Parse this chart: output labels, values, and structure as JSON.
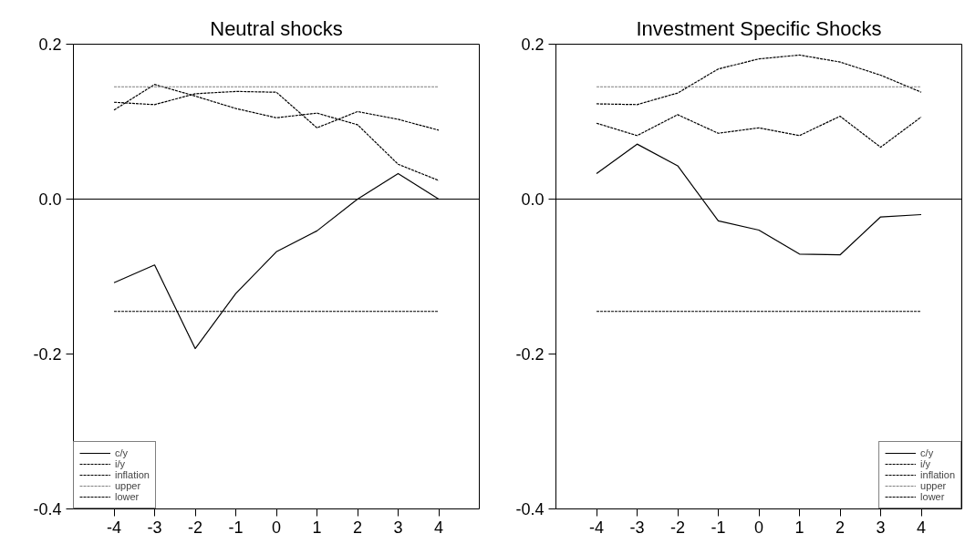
{
  "chart_data": [
    {
      "type": "line",
      "title": "Neutral shocks",
      "x": [
        -4,
        -3,
        -2,
        -1,
        0,
        1,
        2,
        3,
        4
      ],
      "xlim": [
        -5,
        5
      ],
      "xticks": [
        -4,
        -3,
        -2,
        -1,
        0,
        1,
        2,
        3,
        4
      ],
      "ylim": [
        -0.4,
        0.2
      ],
      "yticks": [
        {
          "value": -0.4,
          "label": "-0.4"
        },
        {
          "value": -0.2,
          "label": "-0.2"
        },
        {
          "value": 0,
          "label": "0.0"
        },
        {
          "value": 0.2,
          "label": "0.2"
        }
      ],
      "grid": false,
      "legend": "bottom left",
      "ref_lines": [
        {
          "axis": "y",
          "value": 0,
          "color": "#000000"
        }
      ],
      "series": [
        {
          "name": "c/y",
          "color": "#000000",
          "line_style": "solid",
          "values": [
            -0.108,
            -0.085,
            -0.193,
            -0.122,
            -0.068,
            -0.041,
            0.0,
            0.033,
            0.0
          ]
        },
        {
          "name": "i/y",
          "color": "#000000",
          "line_style": "dashed",
          "values": [
            0.115,
            0.148,
            0.133,
            0.117,
            0.105,
            0.111,
            0.096,
            0.045,
            0.024
          ]
        },
        {
          "name": "inflation",
          "color": "#000000",
          "line_style": "dashed",
          "values": [
            0.125,
            0.122,
            0.136,
            0.139,
            0.138,
            0.092,
            0.113,
            0.103,
            0.089
          ]
        },
        {
          "name": "upper",
          "color": "#808080",
          "line_style": "dashed",
          "values": [
            0.145,
            0.145,
            0.145,
            0.145,
            0.145,
            0.145,
            0.145,
            0.145,
            0.145
          ]
        },
        {
          "name": "lower",
          "color": "#000000",
          "line_style": "dashed",
          "values": [
            -0.145,
            -0.145,
            -0.145,
            -0.145,
            -0.145,
            -0.145,
            -0.145,
            -0.145,
            -0.145
          ]
        }
      ]
    },
    {
      "type": "line",
      "title": "Investment Specific Shocks",
      "x": [
        -4,
        -3,
        -2,
        -1,
        0,
        1,
        2,
        3,
        4
      ],
      "xlim": [
        -5,
        5
      ],
      "xticks": [
        -4,
        -3,
        -2,
        -1,
        0,
        1,
        2,
        3,
        4
      ],
      "ylim": [
        -0.4,
        0.2
      ],
      "yticks": [
        {
          "value": -0.4,
          "label": "-0.4"
        },
        {
          "value": -0.2,
          "label": "-0.2"
        },
        {
          "value": 0,
          "label": "0.0"
        },
        {
          "value": 0.2,
          "label": "0.2"
        }
      ],
      "grid": false,
      "legend": "bottom right",
      "ref_lines": [
        {
          "axis": "y",
          "value": 0,
          "color": "#000000"
        }
      ],
      "series": [
        {
          "name": "c/y",
          "color": "#000000",
          "line_style": "solid",
          "values": [
            0.033,
            0.071,
            0.043,
            -0.028,
            -0.04,
            -0.071,
            -0.072,
            -0.023,
            -0.02
          ]
        },
        {
          "name": "i/y",
          "color": "#000000",
          "line_style": "dashed",
          "values": [
            0.098,
            0.082,
            0.109,
            0.085,
            0.092,
            0.082,
            0.107,
            0.067,
            0.106
          ]
        },
        {
          "name": "inflation",
          "color": "#000000",
          "line_style": "dashed",
          "values": [
            0.123,
            0.122,
            0.137,
            0.168,
            0.181,
            0.186,
            0.177,
            0.16,
            0.138
          ]
        },
        {
          "name": "upper",
          "color": "#808080",
          "line_style": "dashed",
          "values": [
            0.145,
            0.145,
            0.145,
            0.145,
            0.145,
            0.145,
            0.145,
            0.145,
            0.145
          ]
        },
        {
          "name": "lower",
          "color": "#000000",
          "line_style": "dashed",
          "values": [
            -0.145,
            -0.145,
            -0.145,
            -0.145,
            -0.145,
            -0.145,
            -0.145,
            -0.145,
            -0.145
          ]
        }
      ]
    }
  ]
}
